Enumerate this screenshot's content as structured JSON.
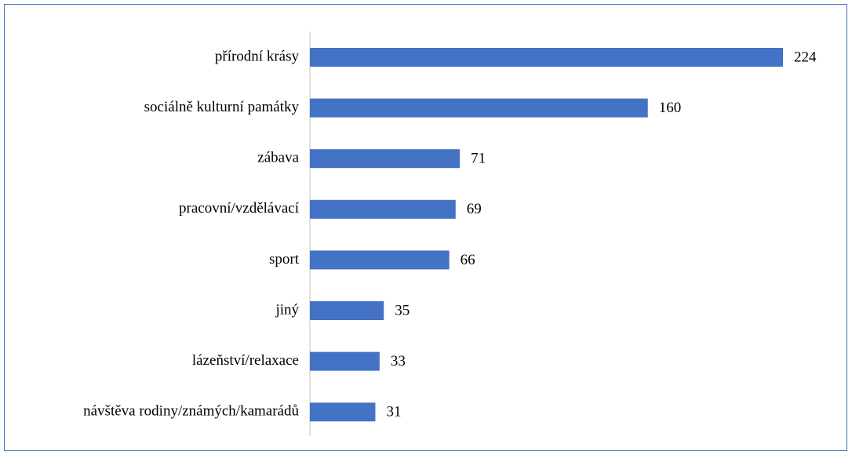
{
  "chart_data": {
    "type": "bar",
    "orientation": "horizontal",
    "color": "#4472c4",
    "categories": [
      "přírodní krásy",
      "sociálně kulturní památky",
      "zábava",
      "pracovní/vzdělávací",
      "sport",
      "jiný",
      "lázeňství/relaxace",
      "návštěva rodiny/známých/kamarádů"
    ],
    "values": [
      224,
      160,
      71,
      69,
      66,
      35,
      33,
      31
    ]
  }
}
